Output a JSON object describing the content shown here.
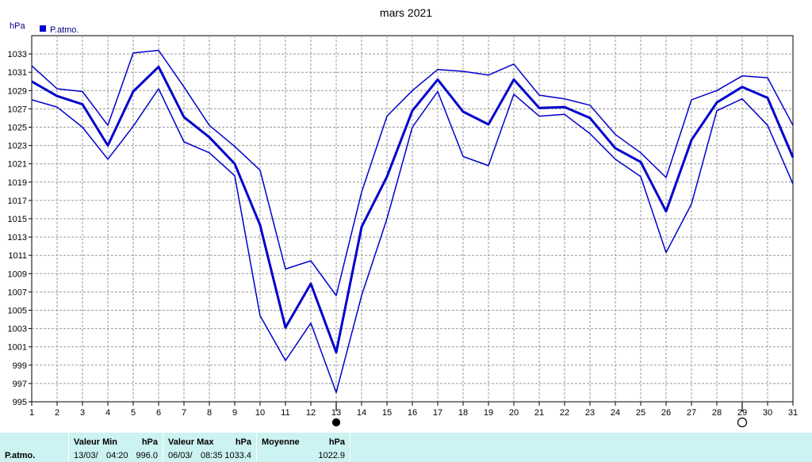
{
  "chart_data": {
    "type": "line",
    "title": "mars 2021",
    "ylabel": "hPa",
    "legend": {
      "label": "P.atmo.",
      "position": "top-left",
      "color": "#0000cc"
    },
    "categories": [
      "1",
      "2",
      "3",
      "4",
      "5",
      "6",
      "7",
      "8",
      "9",
      "10",
      "11",
      "12",
      "13",
      "14",
      "15",
      "16",
      "17",
      "18",
      "19",
      "20",
      "21",
      "22",
      "23",
      "24",
      "25",
      "26",
      "27",
      "28",
      "29",
      "30",
      "31"
    ],
    "ylim": [
      995,
      1035
    ],
    "yticks": [
      995,
      997,
      999,
      1001,
      1003,
      1005,
      1007,
      1009,
      1011,
      1013,
      1015,
      1017,
      1019,
      1021,
      1023,
      1025,
      1027,
      1029,
      1031,
      1033
    ],
    "grid": true,
    "series": [
      {
        "role": "max",
        "values": [
          1031.7,
          1029.2,
          1028.9,
          1025.2,
          1033.1,
          1033.4,
          1029.4,
          1025.2,
          1022.9,
          1020.3,
          1009.5,
          1010.4,
          1006.6,
          1017.9,
          1026.2,
          1029.0,
          1031.3,
          1031.1,
          1030.7,
          1031.9,
          1028.5,
          1028.1,
          1027.4,
          1024.2,
          1022.2,
          1019.5,
          1028.0,
          1029.0,
          1030.6,
          1030.4,
          1025.2
        ]
      },
      {
        "role": "mean",
        "values": [
          1030.0,
          1028.4,
          1027.5,
          1023.0,
          1028.9,
          1031.6,
          1026.1,
          1023.9,
          1021.0,
          1014.3,
          1003.1,
          1007.9,
          1000.4,
          1014.1,
          1019.6,
          1026.8,
          1030.2,
          1026.7,
          1025.3,
          1030.2,
          1027.1,
          1027.2,
          1026.0,
          1022.7,
          1021.2,
          1015.8,
          1023.6,
          1027.7,
          1029.4,
          1028.2,
          1021.7
        ]
      },
      {
        "role": "min",
        "values": [
          1028.0,
          1027.2,
          1025.0,
          1021.5,
          1025.1,
          1029.2,
          1023.4,
          1022.2,
          1019.7,
          1004.4,
          999.5,
          1003.6,
          996.0,
          1006.6,
          1015.0,
          1025.0,
          1028.9,
          1021.8,
          1020.8,
          1028.6,
          1026.2,
          1026.4,
          1024.3,
          1021.5,
          1019.6,
          1011.3,
          1016.6,
          1026.8,
          1028.1,
          1025.2,
          1018.8
        ]
      }
    ],
    "moon_phases": [
      {
        "day": "13",
        "phase": "new"
      },
      {
        "day": "29",
        "phase": "full"
      }
    ]
  },
  "stats": {
    "row_label": "P.atmo.",
    "min": {
      "header": "Valeur Min",
      "unit": "hPa",
      "date": "13/03/",
      "time": "04:20",
      "value": "996.0"
    },
    "max": {
      "header": "Valeur Max",
      "unit": "hPa",
      "date": "06/03/",
      "time": "08:35",
      "value": "1033.4"
    },
    "mean": {
      "header": "Moyenne",
      "unit": "hPa",
      "value": "1022.9"
    }
  },
  "colors": {
    "line": "#0000cc",
    "grid": "#9a9a9a",
    "panel": "#ccf2f2"
  }
}
